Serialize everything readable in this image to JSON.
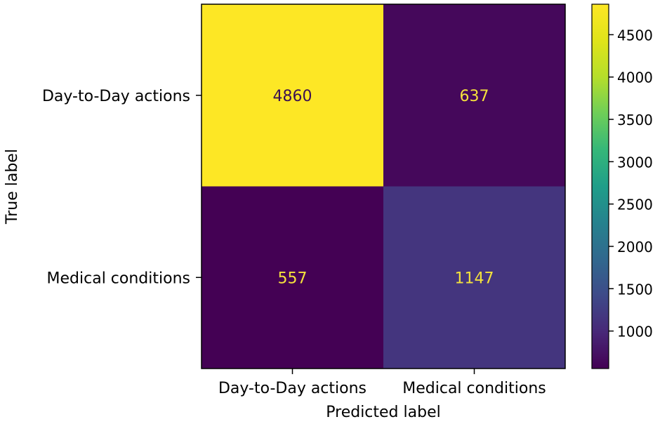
{
  "chart_data": {
    "type": "heatmap",
    "title": "",
    "xlabel": "Predicted label",
    "ylabel": "True label",
    "x_categories": [
      "Day-to-Day actions",
      "Medical conditions"
    ],
    "y_categories": [
      "Day-to-Day actions",
      "Medical conditions"
    ],
    "values": [
      [
        4860,
        637
      ],
      [
        557,
        1147
      ]
    ],
    "colormap": "viridis",
    "colorbar": {
      "vmin": 557,
      "vmax": 4860,
      "ticks": [
        1000,
        1500,
        2000,
        2500,
        3000,
        3500,
        4000,
        4500
      ],
      "tick_labels": [
        "1000",
        "1500",
        "2000",
        "2500",
        "3000",
        "3500",
        "4000",
        "4500"
      ]
    },
    "colors": {
      "text_on_dark": "#f5e23c",
      "text_on_light": "#3b0f52"
    }
  }
}
